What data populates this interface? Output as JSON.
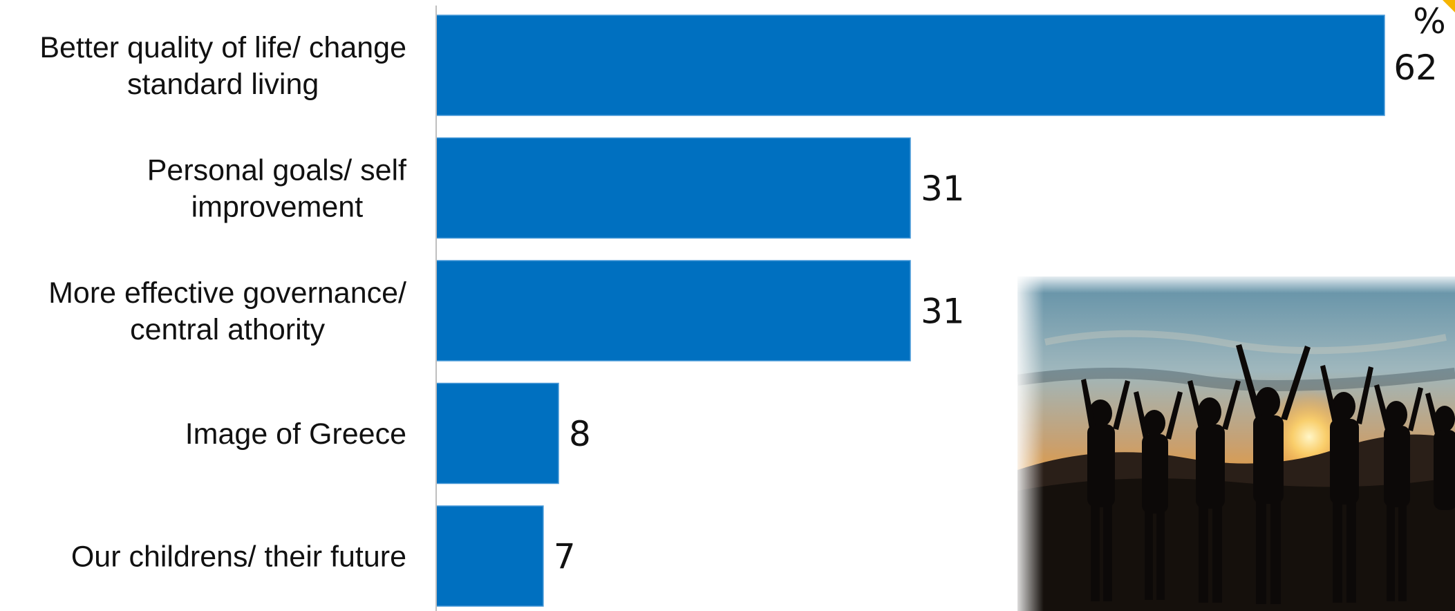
{
  "chart_data": {
    "type": "bar",
    "orientation": "horizontal",
    "unit_label": "%",
    "categories": [
      [
        "Better quality of life/ change",
        "standard living"
      ],
      [
        "Personal goals/ self",
        "improvement"
      ],
      [
        "More effective governance/",
        "central athority"
      ],
      [
        "Image of Greece"
      ],
      [
        "Our childrens/ their future"
      ]
    ],
    "values": [
      62,
      31,
      31,
      8,
      7
    ],
    "xlim": [
      0,
      62
    ],
    "bar_color": "#0070C0",
    "axis_color": "#BFBFBF",
    "grid": false,
    "legend": "none"
  },
  "decorations": {
    "photo": "silhouettes-of-people-raising-hands-at-sunset",
    "corner_accent_color": "#F5B400"
  }
}
